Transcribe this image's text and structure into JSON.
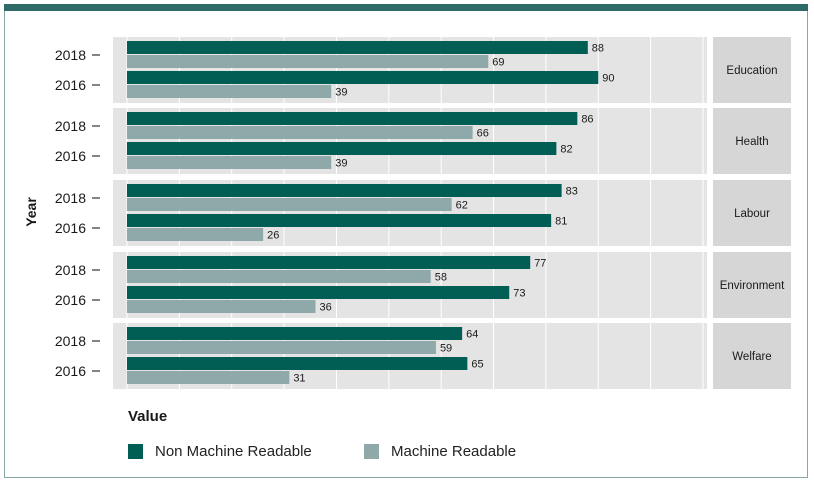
{
  "chart_data": {
    "type": "bar",
    "orientation": "horizontal",
    "facet_by": "category",
    "ylabel": "Year",
    "xlabel": "Value",
    "xlim": [
      0,
      110
    ],
    "grid": true,
    "legend_placement": "bottom-left",
    "legend_title": "Value",
    "years": [
      "2018",
      "2016"
    ],
    "panels": [
      {
        "category": "Education",
        "values": {
          "2018": {
            "Non Machine Readable": 88,
            "Machine Readable": 69
          },
          "2016": {
            "Non Machine Readable": 90,
            "Machine Readable": 39
          }
        }
      },
      {
        "category": "Health",
        "values": {
          "2018": {
            "Non Machine Readable": 86,
            "Machine Readable": 66
          },
          "2016": {
            "Non Machine Readable": 82,
            "Machine Readable": 39
          }
        }
      },
      {
        "category": "Labour",
        "values": {
          "2018": {
            "Non Machine Readable": 83,
            "Machine Readable": 62
          },
          "2016": {
            "Non Machine Readable": 81,
            "Machine Readable": 26
          }
        }
      },
      {
        "category": "Environment",
        "values": {
          "2018": {
            "Non Machine Readable": 77,
            "Machine Readable": 58
          },
          "2016": {
            "Non Machine Readable": 73,
            "Machine Readable": 36
          }
        }
      },
      {
        "category": "Welfare",
        "values": {
          "2018": {
            "Non Machine Readable": 64,
            "Machine Readable": 59
          },
          "2016": {
            "Non Machine Readable": 65,
            "Machine Readable": 31
          }
        }
      }
    ],
    "series": [
      {
        "name": "Non Machine Readable",
        "color": "#005e55"
      },
      {
        "name": "Machine Readable",
        "color": "#8fa9aa"
      }
    ]
  },
  "colors": {
    "panel_background": "#e4e4e4",
    "strip_background": "#d6d6d6",
    "grid": "#ffffff",
    "frame_accent": "#2d6b68"
  }
}
